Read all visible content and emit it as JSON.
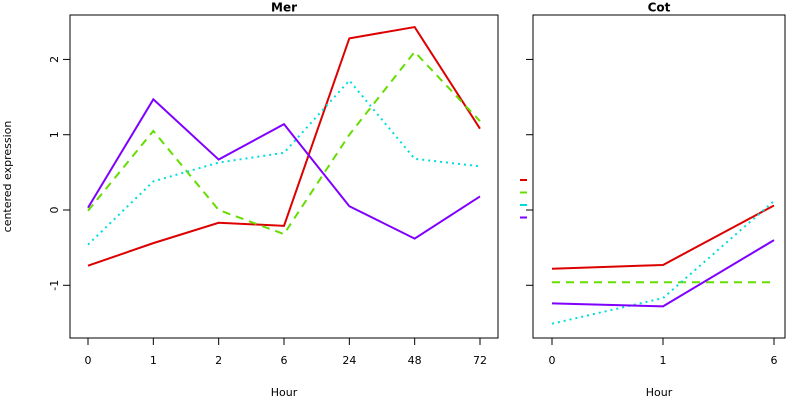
{
  "chart_data": [
    {
      "type": "line",
      "title": "Mer",
      "x_label": "Hour",
      "y_label": "centered expression",
      "categories": [
        "0",
        "1",
        "2",
        "6",
        "24",
        "48",
        "72"
      ],
      "ylim": [
        -1.7,
        2.59
      ],
      "yticks": [
        -1,
        0,
        1,
        2
      ],
      "show_ytick_labels": true,
      "series": [
        {
          "color": "#dd0000",
          "dash": "solid",
          "values": [
            -0.74,
            -0.44,
            -0.17,
            -0.21,
            2.28,
            2.43,
            1.08
          ]
        },
        {
          "color": "#66dd00",
          "dash": "dashed",
          "values": [
            -0.01,
            1.05,
            0.0,
            -0.32,
            1.0,
            2.1,
            1.18
          ]
        },
        {
          "color": "#00dddd",
          "dash": "dotted",
          "values": [
            -0.46,
            0.38,
            0.63,
            0.76,
            1.72,
            0.68,
            0.58
          ]
        },
        {
          "color": "#7f00ff",
          "dash": "solid",
          "values": [
            0.03,
            1.47,
            0.67,
            1.14,
            0.05,
            -0.38,
            0.18
          ]
        }
      ]
    },
    {
      "type": "line",
      "title": "Cot",
      "x_label": "Hour",
      "categories": [
        "0",
        "1",
        "6"
      ],
      "ylim": [
        -1.7,
        2.59
      ],
      "yticks": [
        -1,
        0,
        1,
        2
      ],
      "show_ytick_labels": false,
      "series": [
        {
          "color": "#dd0000",
          "dash": "solid",
          "values": [
            -0.78,
            -0.73,
            0.06
          ]
        },
        {
          "color": "#66dd00",
          "dash": "dashed",
          "values": [
            -0.96,
            -0.96,
            -0.96
          ]
        },
        {
          "color": "#00dddd",
          "dash": "dotted",
          "values": [
            -1.51,
            -1.17,
            0.12
          ]
        },
        {
          "color": "#7f00ff",
          "dash": "solid",
          "values": [
            -1.24,
            -1.28,
            -0.4
          ]
        }
      ]
    }
  ]
}
